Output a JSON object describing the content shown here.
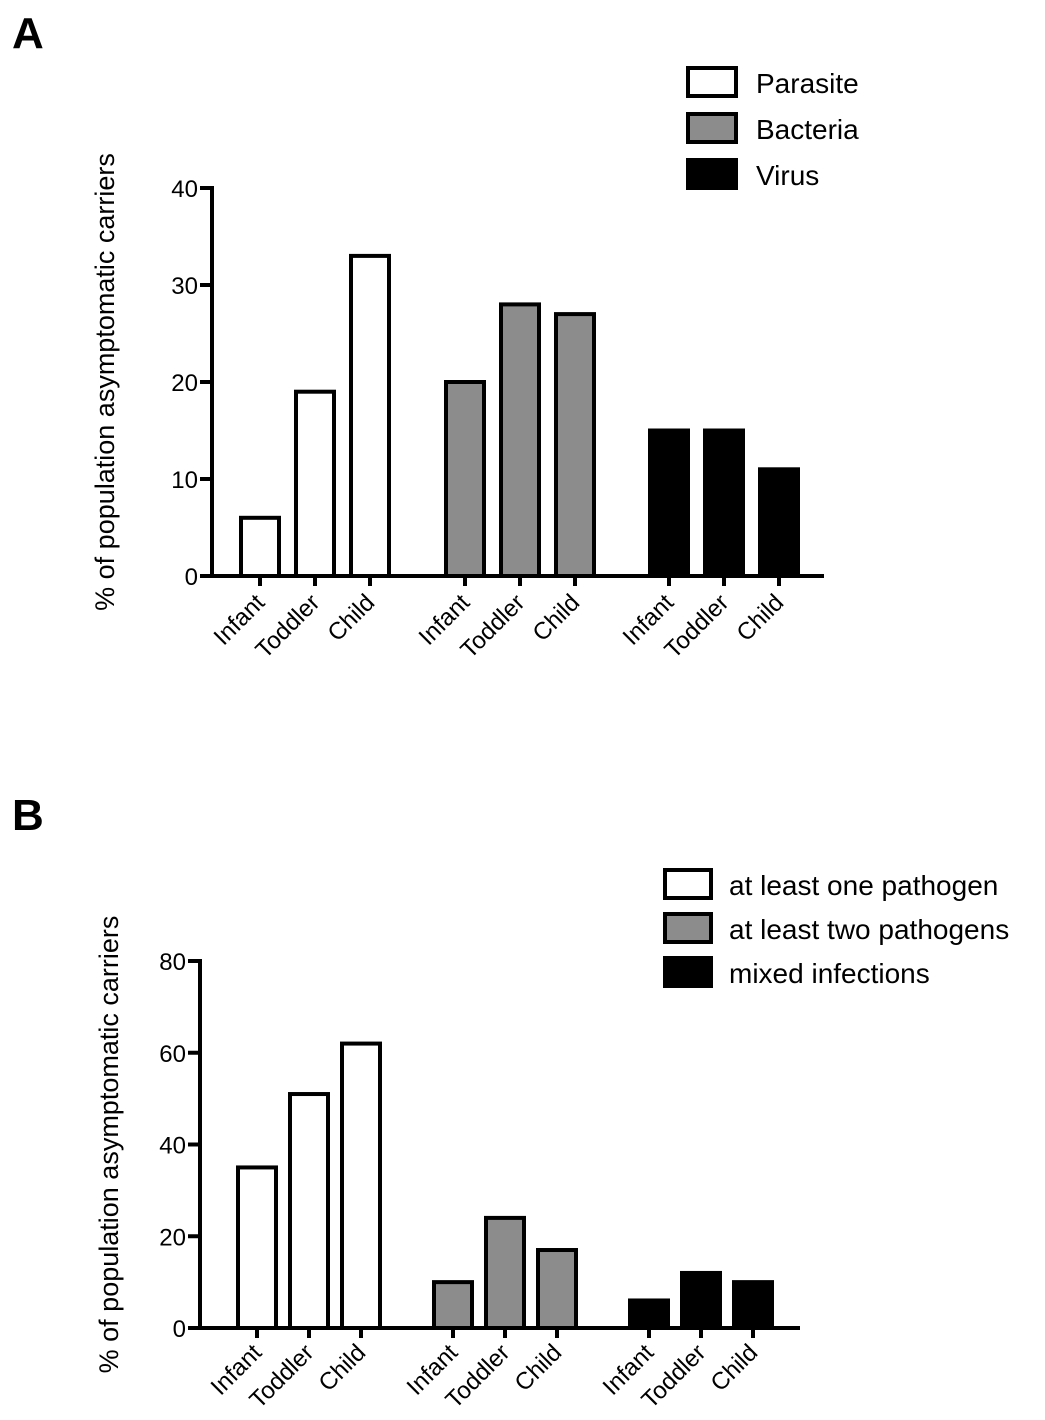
{
  "colors": {
    "white": "#ffffff",
    "gray": "#8c8c8c",
    "black": "#000000"
  },
  "chart_data": [
    {
      "panel": "A",
      "type": "bar",
      "ylabel": "% of population asymptomatic carriers",
      "ylim": [
        0,
        40
      ],
      "yticks": [
        0,
        10,
        20,
        30,
        40
      ],
      "legend_position": "top-right",
      "groups": [
        {
          "name": "Parasite",
          "color": "#ffffff",
          "categories": [
            "Infant",
            "Toddler",
            "Child"
          ],
          "values": [
            6,
            19,
            33
          ]
        },
        {
          "name": "Bacteria",
          "color": "#8c8c8c",
          "categories": [
            "Infant",
            "Toddler",
            "Child"
          ],
          "values": [
            20,
            28,
            27
          ]
        },
        {
          "name": "Virus",
          "color": "#000000",
          "categories": [
            "Infant",
            "Toddler",
            "Child"
          ],
          "values": [
            15,
            15,
            11
          ]
        }
      ]
    },
    {
      "panel": "B",
      "type": "bar",
      "ylabel": "% of population asymptomatic carriers",
      "ylim": [
        0,
        80
      ],
      "yticks": [
        0,
        20,
        40,
        60,
        80
      ],
      "legend_position": "top-right",
      "groups": [
        {
          "name": "at least one pathogen",
          "color": "#ffffff",
          "categories": [
            "Infant",
            "Toddler",
            "Child"
          ],
          "values": [
            35,
            51,
            62
          ]
        },
        {
          "name": "at least two pathogens",
          "color": "#8c8c8c",
          "categories": [
            "Infant",
            "Toddler",
            "Child"
          ],
          "values": [
            10,
            24,
            17
          ]
        },
        {
          "name": "mixed infections",
          "color": "#000000",
          "categories": [
            "Infant",
            "Toddler",
            "Child"
          ],
          "values": [
            6,
            12,
            10
          ]
        }
      ]
    }
  ]
}
